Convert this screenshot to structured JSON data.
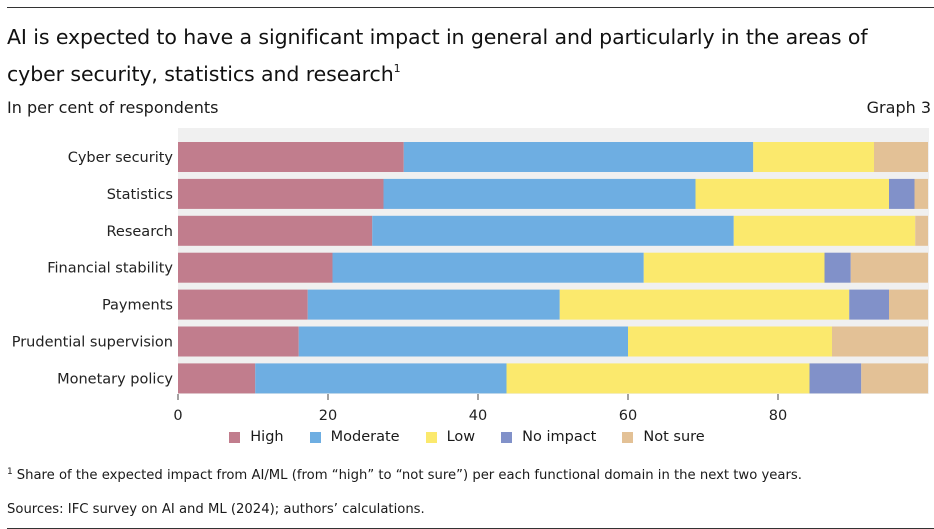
{
  "header": {
    "title": "AI is expected to have a significant impact in general and particularly in the areas of cyber security, statistics and research",
    "title_footnote_mark": "1",
    "subtitle": "In per cent of respondents",
    "graph_label": "Graph 3"
  },
  "colors": {
    "High": "#c17d8d",
    "Moderate": "#6eaee2",
    "Low": "#fbe96d",
    "No impact": "#8191c9",
    "Not sure": "#e3c196"
  },
  "chart_data": {
    "type": "bar",
    "orientation": "horizontal",
    "stacked": true,
    "categories": [
      "Cyber security",
      "Statistics",
      "Research",
      "Financial stability",
      "Payments",
      "Prudential supervision",
      "Monetary policy"
    ],
    "series": [
      {
        "name": "High",
        "values": [
          30.1,
          27.4,
          25.9,
          20.6,
          17.3,
          16.1,
          10.3
        ]
      },
      {
        "name": "Moderate",
        "values": [
          46.6,
          41.6,
          48.2,
          41.5,
          33.6,
          43.9,
          33.5
        ]
      },
      {
        "name": "Low",
        "values": [
          16.1,
          25.8,
          24.2,
          24.1,
          38.6,
          27.2,
          40.4
        ]
      },
      {
        "name": "No impact",
        "values": [
          0,
          3.4,
          0,
          3.5,
          5.3,
          0,
          6.9
        ]
      },
      {
        "name": "Not sure",
        "values": [
          7.2,
          1.8,
          1.7,
          10.3,
          5.2,
          12.8,
          8.9
        ]
      }
    ],
    "xlim": [
      0,
      100
    ],
    "xticks": [
      0,
      20,
      40,
      60,
      80
    ],
    "xlabel": "",
    "ylabel": "",
    "legend_position": "bottom",
    "grid": false
  },
  "footnote": {
    "mark": "1",
    "text": "Share of the expected impact from AI/ML (from “high” to “not sure”) per each functional domain in the next two years."
  },
  "sources": "Sources: IFC survey on AI and ML (2024); authors’ calculations."
}
